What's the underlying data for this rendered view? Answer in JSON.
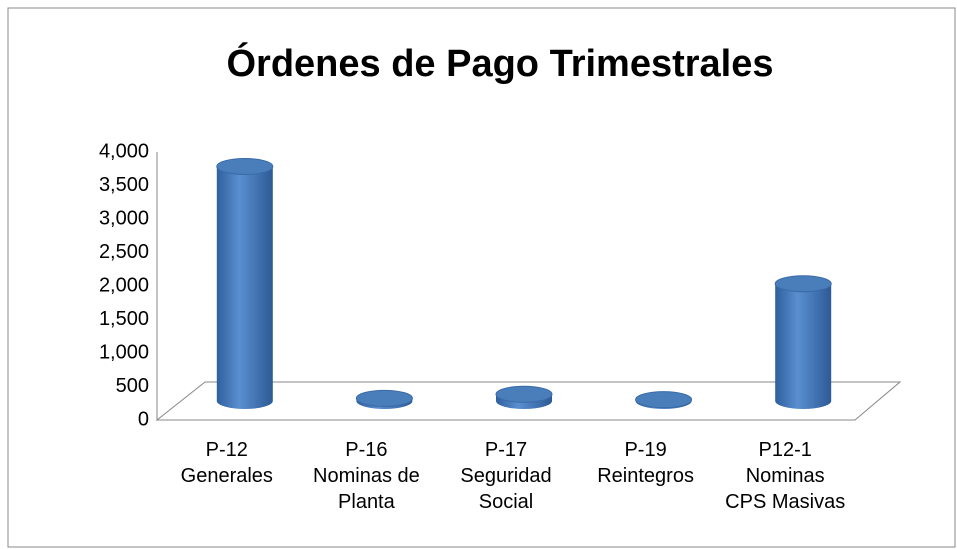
{
  "chart_data": {
    "type": "bar",
    "title": "Órdenes de Pago Trimestrales",
    "categories": [
      "P-12\nGenerales",
      "P-16\nNominas de\nPlanta",
      "P-17\nSeguridad\nSocial",
      "P-19\nReintegros",
      "P12-1\nNominas\nCPS Masivas"
    ],
    "values": [
      3500,
      40,
      100,
      20,
      1750
    ],
    "color": "#4a7ebb",
    "ylim": [
      0,
      4000
    ],
    "yticks": [
      0,
      500,
      {
        "value": 1000,
        "label": "1,000"
      },
      {
        "value": 1500,
        "label": "1,500"
      },
      {
        "value": 2000,
        "label": "2,000"
      },
      {
        "value": 2500,
        "label": "2,500"
      },
      {
        "value": 3000,
        "label": "3,000"
      },
      {
        "value": 3500,
        "label": "3,500"
      },
      {
        "value": 4000,
        "label": "4,000"
      }
    ],
    "grid": false
  }
}
